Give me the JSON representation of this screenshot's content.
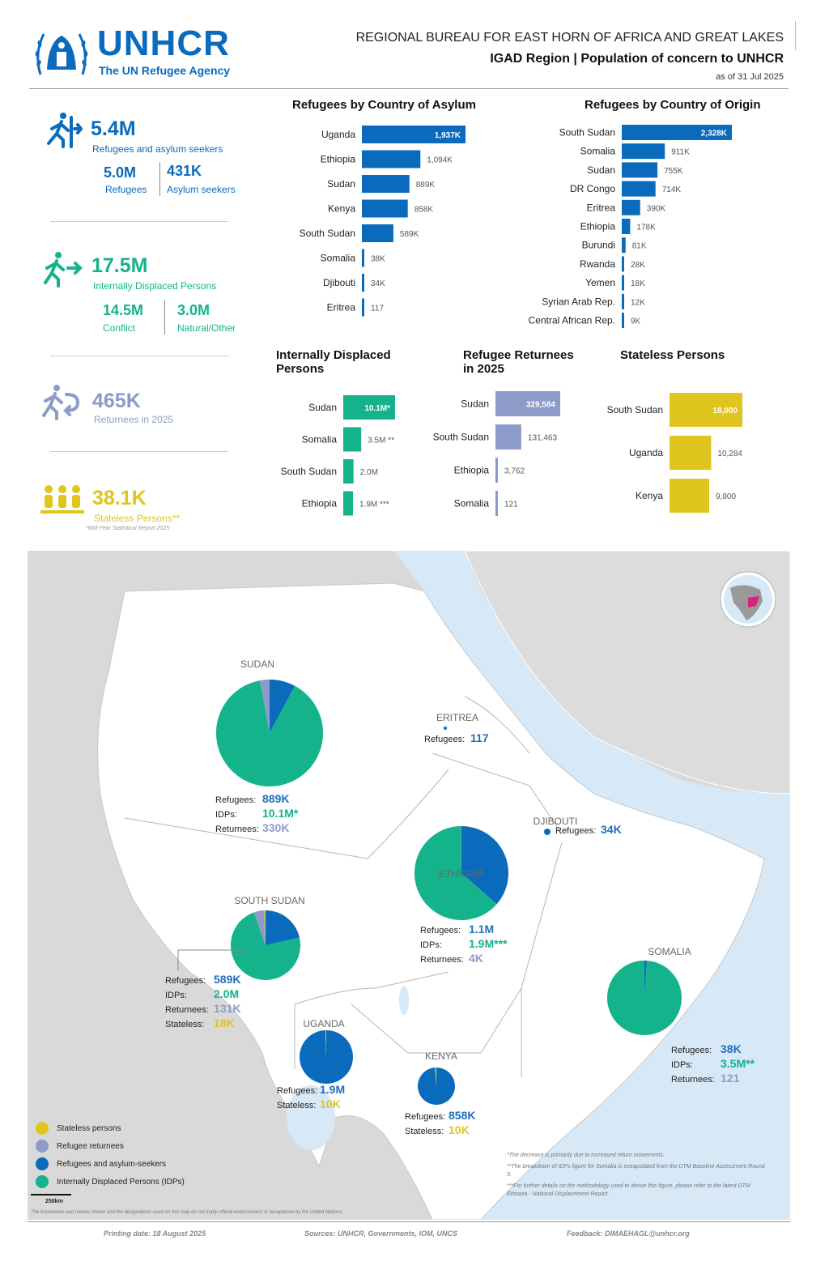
{
  "header": {
    "logo_text": "UNHCR",
    "logo_subtitle": "The UN Refugee Agency",
    "line1": "REGIONAL BUREAU FOR EAST HORN OF AFRICA AND GREAT LAKES",
    "line2": "IGAD Region | Population of concern to UNHCR",
    "date": "as of 31 Jul 2025"
  },
  "kpis": {
    "refugees_asylum": {
      "value": "5.4M",
      "label": "Refugees and asylum seekers",
      "sub": [
        {
          "value": "5.0M",
          "label": "Refugees"
        },
        {
          "value": "431K",
          "label": "Asylum seekers"
        }
      ]
    },
    "idps": {
      "value": "17.5M",
      "label": "Internally Displaced Persons",
      "sub": [
        {
          "value": "14.5M",
          "label": "Conflict"
        },
        {
          "value": "3.0M",
          "label": "Natural/Other"
        }
      ]
    },
    "returnees": {
      "value": "465K",
      "label": "Returnees in 2025"
    },
    "stateless": {
      "value": "38.1K",
      "label": "Stateless Persons**",
      "note": "*Mid-Year Statistical Report 2025"
    }
  },
  "colors": {
    "refugees": "#0a6bbd",
    "idps": "#14b38c",
    "returnees": "#8c9bc8",
    "stateless": "#e0c51e",
    "text_blue": "#1f6fbf"
  },
  "chart_data": [
    {
      "type": "bar",
      "title": "Refugees by Country of Asylum",
      "categories": [
        "Uganda",
        "Ethiopia",
        "Sudan",
        "Kenya",
        "South Sudan",
        "Somalia",
        "Djibouti",
        "Eritrea"
      ],
      "values": [
        1937,
        1094,
        889,
        858,
        589,
        38,
        34,
        0.117
      ],
      "labels": [
        "1,937K",
        "1,094K",
        "889K",
        "858K",
        "589K",
        "38K",
        "34K",
        "117"
      ]
    },
    {
      "type": "bar",
      "title": "Refugees by Country of Origin",
      "categories": [
        "South Sudan",
        "Somalia",
        "Sudan",
        "DR Congo",
        "Eritrea",
        "Ethiopia",
        "Burundi",
        "Rwanda",
        "Yemen",
        "Syrian Arab Rep.",
        "Central African Rep."
      ],
      "values": [
        2328,
        911,
        755,
        714,
        390,
        178,
        81,
        28,
        18,
        12,
        9
      ],
      "labels": [
        "2,328K",
        "911K",
        "755K",
        "714K",
        "390K",
        "178K",
        "81K",
        "28K",
        "18K",
        "12K",
        "9K"
      ]
    },
    {
      "type": "bar",
      "title": "Internally Displaced Persons",
      "categories": [
        "Sudan",
        "Somalia",
        "South Sudan",
        "Ethiopia"
      ],
      "values": [
        10.1,
        3.5,
        2.0,
        1.9
      ],
      "labels": [
        "10.1M*",
        "3.5M **",
        "2.0M",
        "1.9M ***"
      ]
    },
    {
      "type": "bar",
      "title": "Refugee Returnees in 2025",
      "categories": [
        "Sudan",
        "South Sudan",
        "Ethiopia",
        "Somalia"
      ],
      "values": [
        329584,
        131463,
        3762,
        121
      ],
      "labels": [
        "329,584",
        "131,463",
        "3,762",
        "121"
      ]
    },
    {
      "type": "bar",
      "title": "Stateless Persons",
      "categories": [
        "South Sudan",
        "Uganda",
        "Kenya"
      ],
      "values": [
        18000,
        10284,
        9800
      ],
      "labels": [
        "18,000",
        "10,284",
        "9,800"
      ]
    }
  ],
  "map": {
    "countries": [
      {
        "name": "SUDAN",
        "stats": [
          {
            "k": "Refugees:",
            "v": "889K",
            "c": "refugees"
          },
          {
            "k": "IDPs:",
            "v": "10.1M*",
            "c": "idps"
          },
          {
            "k": "Returnees:",
            "v": "330K",
            "c": "returnees"
          }
        ],
        "pie": [
          889,
          10100,
          330,
          0
        ]
      },
      {
        "name": "ERITREA",
        "stats": [
          {
            "k": "Refugees:",
            "v": "117",
            "c": "refugees"
          }
        ],
        "pie": []
      },
      {
        "name": "DJIBOUTI",
        "stats": [
          {
            "k": "Refugees:",
            "v": "34K",
            "c": "refugees"
          }
        ],
        "pie": []
      },
      {
        "name": "ETHIOPIA",
        "stats": [
          {
            "k": "Refugees:",
            "v": "1.1M",
            "c": "refugees"
          },
          {
            "k": "IDPs:",
            "v": "1.9M***",
            "c": "idps"
          },
          {
            "k": "Returnees:",
            "v": "4K",
            "c": "returnees"
          }
        ],
        "pie": [
          1094,
          1900,
          4,
          0
        ]
      },
      {
        "name": "SOUTH SUDAN",
        "stats": [
          {
            "k": "Refugees:",
            "v": "589K",
            "c": "refugees"
          },
          {
            "k": "IDPs:",
            "v": "2.0M",
            "c": "idps"
          },
          {
            "k": "Returnees:",
            "v": "131K",
            "c": "returnees"
          },
          {
            "k": "Stateless:",
            "v": "18K",
            "c": "stateless"
          }
        ],
        "pie": [
          589,
          2000,
          131,
          18
        ]
      },
      {
        "name": "SOMALIA",
        "stats": [
          {
            "k": "Refugees:",
            "v": "38K",
            "c": "refugees"
          },
          {
            "k": "IDPs:",
            "v": "3.5M**",
            "c": "idps"
          },
          {
            "k": "Returnees:",
            "v": "121",
            "c": "returnees"
          }
        ],
        "pie": [
          38,
          3500,
          0.121,
          0
        ]
      },
      {
        "name": "UGANDA",
        "stats": [
          {
            "k": "Refugees:",
            "v": "1.9M",
            "c": "refugees"
          },
          {
            "k": "Stateless:",
            "v": "10K",
            "c": "stateless"
          }
        ],
        "pie": [
          1937,
          0,
          0,
          10
        ]
      },
      {
        "name": "KENYA",
        "stats": [
          {
            "k": "Refugees:",
            "v": "858K",
            "c": "refugees"
          },
          {
            "k": "Stateless:",
            "v": "10K",
            "c": "stateless"
          }
        ],
        "pie": [
          858,
          0,
          0,
          10
        ]
      }
    ],
    "legend": [
      "Stateless persons",
      "Refugee returnees",
      "Refugees and asylum-seekers",
      "Internally Displaced Persons (IDPs)"
    ],
    "scale": "250km",
    "notes": [
      "*The decrease is primarily due to increased return movements.",
      "**The breakdown of IDPs figure for Somalia is extrapolated from the DTM Baseline Assessment Round 3.",
      "***For further details on the methodology used to derive this figure, please refer to the latest DTM Ethiopia - National Displacement Report."
    ],
    "disclaimer": "The boundaries and names shown and the designations used on this map do not imply official endorsement or acceptance by the United Nations."
  },
  "footer": {
    "printing": "Printing date: 18 August 2025",
    "sources": "Sources: UNHCR, Governments, IOM, UNCS",
    "feedback": "Feedback: DIMAEHAGL@unhcr.org"
  }
}
